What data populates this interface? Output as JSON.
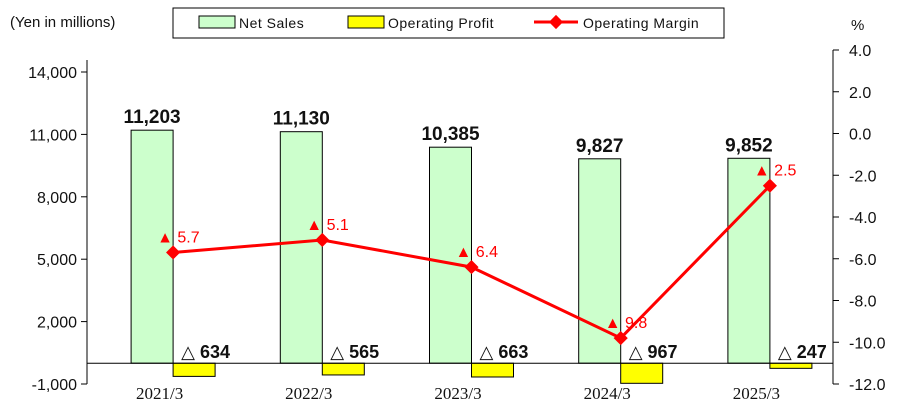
{
  "chart_data": {
    "type": "bar",
    "y_unit_label": "(Yen in millions)",
    "y2_unit_label": "%",
    "categories": [
      "2021/3",
      "2022/3",
      "2023/3",
      "2024/3",
      "2025/3"
    ],
    "y_ticks": [
      "14,000",
      "11,000",
      "8,000",
      "5,000",
      "2,000",
      "-1,000"
    ],
    "y2_ticks": [
      "4.0",
      "2.0",
      "0.0",
      "-2.0",
      "-4.0",
      "-6.0",
      "-8.0",
      "-10.0",
      "-12.0"
    ],
    "ylim": [
      -1000,
      14000
    ],
    "y2lim": [
      -12,
      4
    ],
    "legend_position": "top",
    "grid": false,
    "series": [
      {
        "name": "Net Sales",
        "kind": "bar",
        "color": "#ccffcc",
        "values": [
          11203,
          11130,
          10385,
          9827,
          9852
        ],
        "labels": [
          "11,203",
          "11,130",
          "10,385",
          "9,827",
          "9,852"
        ]
      },
      {
        "name": "Operating Profit",
        "kind": "bar",
        "color": "#ffff00",
        "values": [
          -634,
          -565,
          -663,
          -967,
          -247
        ],
        "labels": [
          "△ 634",
          "△ 565",
          "△ 663",
          "△ 967",
          "△ 247"
        ]
      },
      {
        "name": "Operating Margin",
        "kind": "line",
        "axis": "right",
        "color": "#ff0000",
        "values": [
          -5.7,
          -5.1,
          -6.4,
          -9.8,
          -2.5
        ],
        "labels": [
          "5.7",
          "5.1",
          "6.4",
          "9.8",
          "2.5"
        ],
        "label_prefix": "▲"
      }
    ]
  }
}
